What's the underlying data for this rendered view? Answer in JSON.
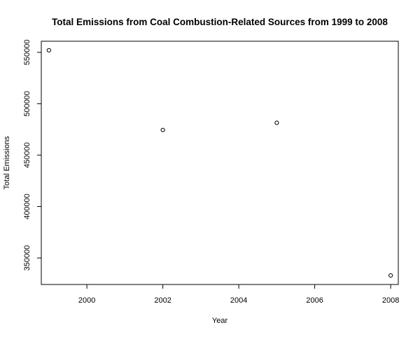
{
  "chart_data": {
    "type": "scatter",
    "title": "Total Emissions from Coal Combustion-Related Sources from 1999 to 2008",
    "xlabel": "Year",
    "ylabel": "Total Emissions",
    "x": [
      1999,
      2002,
      2005,
      2008
    ],
    "y": [
      552000,
      474500,
      481500,
      333000
    ],
    "xlim": [
      1998.8,
      2008.2
    ],
    "ylim": [
      324200,
      560800
    ],
    "xticks": [
      2000,
      2002,
      2004,
      2006,
      2008
    ],
    "xtick_labels": [
      "2000",
      "2002",
      "2004",
      "2006",
      "2008"
    ],
    "yticks": [
      350000,
      400000,
      450000,
      500000,
      550000
    ],
    "ytick_labels": [
      "350000",
      "400000",
      "450000",
      "500000",
      "550000"
    ],
    "grid": false,
    "marker": "open-circle",
    "colors": {
      "points": "#000000",
      "axes": "#000000",
      "background": "#ffffff"
    }
  }
}
